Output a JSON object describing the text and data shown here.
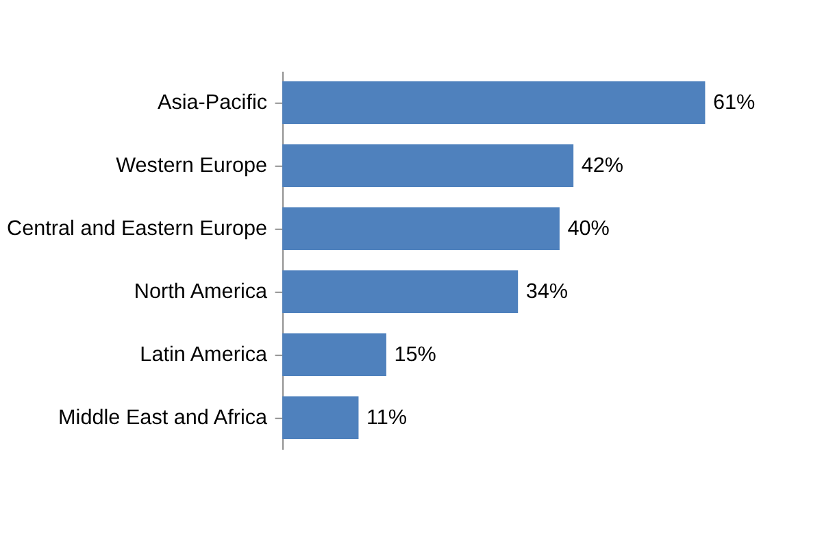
{
  "chart_data": {
    "type": "bar",
    "orientation": "horizontal",
    "relative": false,
    "categories": [
      "Asia-Pacific",
      "Western Europe",
      "Central and Eastern Europe",
      "North America",
      "Latin America",
      "Middle East and Africa"
    ],
    "values": [
      61,
      42,
      40,
      34,
      15,
      11
    ],
    "value_labels": [
      "61%",
      "42%",
      "40%",
      "34%",
      "15%",
      "11%"
    ],
    "color": "#4f81bd"
  }
}
